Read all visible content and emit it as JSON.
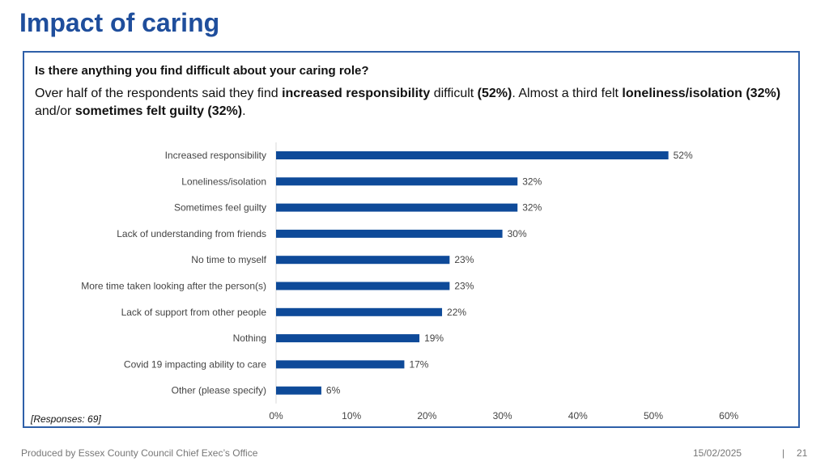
{
  "page": {
    "title": "Impact of caring",
    "question": "Is there anything you find difficult about your caring role?",
    "summary": {
      "t1": "Over half of the respondents said they find ",
      "b1": "increased responsibility",
      "t2": " difficult ",
      "b2": "(52%)",
      "t3": ". Almost a third felt ",
      "b3": "loneliness/isolation (32%)",
      "t4": " and/or ",
      "b4": "sometimes felt guilty (32%)",
      "t5": "."
    },
    "responses_note": "[Responses: 69]"
  },
  "footer": {
    "producer": "Produced by Essex County Council Chief Exec’s Office",
    "date": "15/02/2025",
    "separator": "|",
    "page_number": "21"
  },
  "colors": {
    "bar": "#0e4a99",
    "title": "#1f4e9c",
    "border": "#2e5fa8"
  },
  "chart_data": {
    "type": "bar",
    "orientation": "horizontal",
    "categories": [
      "Increased responsibility",
      "Loneliness/isolation",
      "Sometimes feel guilty",
      "Lack of understanding from friends",
      "No time to myself",
      "More time taken looking after the person(s)",
      "Lack of support from other people",
      "Nothing",
      "Covid 19 impacting ability to care",
      "Other (please specify)"
    ],
    "values": [
      52,
      32,
      32,
      30,
      23,
      23,
      22,
      19,
      17,
      6
    ],
    "value_labels": [
      "52%",
      "32%",
      "32%",
      "30%",
      "23%",
      "23%",
      "22%",
      "19%",
      "17%",
      "6%"
    ],
    "x_ticks": [
      0,
      10,
      20,
      30,
      40,
      50,
      60
    ],
    "x_tick_labels": [
      "0%",
      "10%",
      "20%",
      "30%",
      "40%",
      "50%",
      "60%"
    ],
    "xlim": [
      0,
      60
    ],
    "grid": false,
    "title": "",
    "xlabel": "",
    "ylabel": ""
  }
}
